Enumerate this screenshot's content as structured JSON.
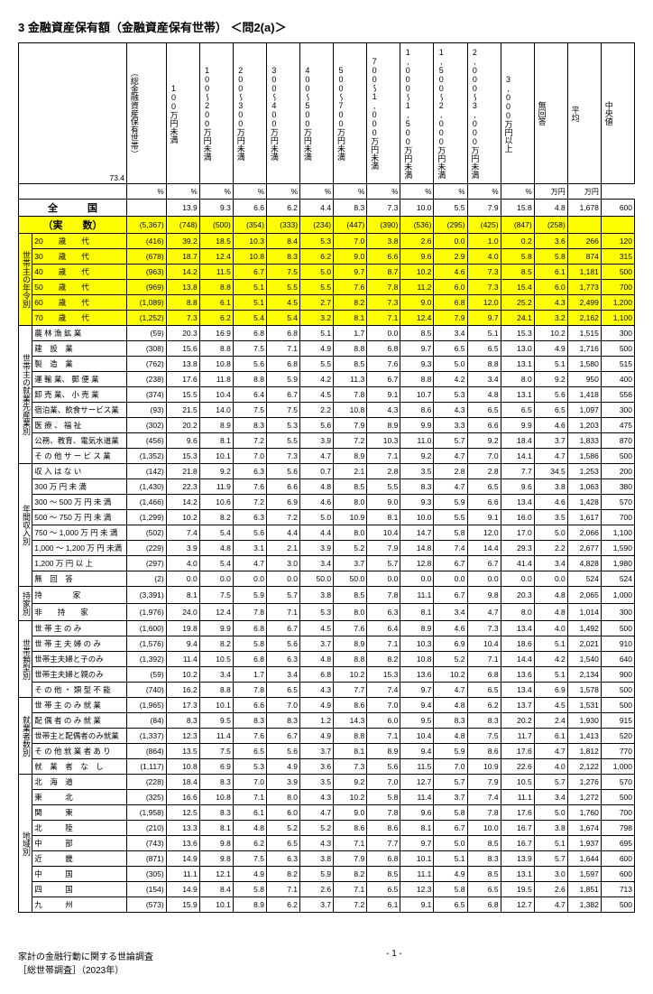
{
  "title": "3 金融資産保有額（金融資産保有世帯） ＜問2(a)＞",
  "corner_value": "73.4",
  "col_headers": {
    "n": "（総金融資産保有世帯）",
    "cols": [
      "100万円未満",
      "100～200万円未満",
      "200～300万円未満",
      "300～400万円未満",
      "400～500万円未満",
      "500～700万円未満",
      "700～1,000万円未満",
      "1,000～1,500万円未満",
      "1,500～2,000万円未満",
      "2,000～3,000万円未満",
      "3,000万円以上",
      "無回答",
      "平均",
      "中央値"
    ]
  },
  "unit_row": [
    "",
    "",
    "%",
    "%",
    "%",
    "%",
    "%",
    "%",
    "%",
    "%",
    "%",
    "%",
    "%",
    "%",
    "万円",
    "万円"
  ],
  "zenkoku": {
    "label": "全　　　国",
    "n": "",
    "vals": [
      "13.9",
      "9.3",
      "6.6",
      "6.2",
      "4.4",
      "8.3",
      "7.3",
      "10.0",
      "5.5",
      "7.9",
      "15.8",
      "4.8",
      "1,678",
      "600"
    ]
  },
  "jissu": {
    "label": "（実　　数）",
    "n": "(5,367)",
    "vals": [
      "(748)",
      "(500)",
      "(354)",
      "(333)",
      "(234)",
      "(447)",
      "(390)",
      "(536)",
      "(295)",
      "(425)",
      "(847)",
      "(258)",
      "",
      ""
    ]
  },
  "sections": [
    {
      "cat": "世帯主の年令別",
      "highlight": true,
      "rows": [
        {
          "label": "20　　歳　　代",
          "n": "(416)",
          "vals": [
            "39.2",
            "18.5",
            "10.3",
            "8.4",
            "5.3",
            "7.0",
            "3.8",
            "2.6",
            "0.0",
            "1.0",
            "0.2",
            "3.6",
            "266",
            "120"
          ]
        },
        {
          "label": "30　　歳　　代",
          "n": "(678)",
          "vals": [
            "18.7",
            "12.4",
            "10.8",
            "8.3",
            "6.2",
            "9.0",
            "6.6",
            "9.6",
            "2.9",
            "4.0",
            "5.8",
            "5.8",
            "874",
            "315"
          ]
        },
        {
          "label": "40　　歳　　代",
          "n": "(963)",
          "vals": [
            "14.2",
            "11.5",
            "6.7",
            "7.5",
            "5.0",
            "9.7",
            "8.7",
            "10.2",
            "4.6",
            "7.3",
            "8.5",
            "6.1",
            "1,181",
            "500"
          ]
        },
        {
          "label": "50　　歳　　代",
          "n": "(969)",
          "vals": [
            "13.8",
            "8.8",
            "5.1",
            "5.5",
            "5.5",
            "7.6",
            "7.8",
            "11.2",
            "6.0",
            "7.3",
            "15.4",
            "6.0",
            "1,773",
            "700"
          ]
        },
        {
          "label": "60　　歳　　代",
          "n": "(1,089)",
          "vals": [
            "8.8",
            "6.1",
            "5.1",
            "4.5",
            "2.7",
            "8.2",
            "7.3",
            "9.0",
            "6.8",
            "12.0",
            "25.2",
            "4.3",
            "2,499",
            "1,200"
          ]
        },
        {
          "label": "70　　歳　　代",
          "n": "(1,252)",
          "vals": [
            "7.3",
            "6.2",
            "5.4",
            "5.4",
            "3.2",
            "8.1",
            "7.1",
            "12.4",
            "7.9",
            "9.7",
            "24.1",
            "3.2",
            "2,162",
            "1,100"
          ]
        }
      ]
    },
    {
      "cat": "世帯主の就業先産業別",
      "rows": [
        {
          "label": "農 林 漁 鉱 業",
          "n": "(59)",
          "vals": [
            "20.3",
            "16.9",
            "6.8",
            "6.8",
            "5.1",
            "1.7",
            "0.0",
            "8.5",
            "3.4",
            "5.1",
            "15.3",
            "10.2",
            "1,515",
            "300"
          ]
        },
        {
          "label": "建　設　業",
          "n": "(308)",
          "vals": [
            "15.6",
            "8.8",
            "7.5",
            "7.1",
            "4.9",
            "8.8",
            "6.8",
            "9.7",
            "6.5",
            "6.5",
            "13.0",
            "4.9",
            "1,716",
            "500"
          ]
        },
        {
          "label": "製　造　業",
          "n": "(762)",
          "vals": [
            "13.8",
            "10.8",
            "5.6",
            "6.8",
            "5.5",
            "8.5",
            "7.6",
            "9.3",
            "5.0",
            "8.8",
            "13.1",
            "5.1",
            "1,580",
            "515"
          ]
        },
        {
          "label": "運 輸 業、 郵 便 業",
          "n": "(238)",
          "vals": [
            "17.6",
            "11.8",
            "8.8",
            "5.9",
            "4.2",
            "11.3",
            "6.7",
            "8.8",
            "4.2",
            "3.4",
            "8.0",
            "9.2",
            "950",
            "400"
          ]
        },
        {
          "label": "卸 売 業、 小 売 業",
          "n": "(374)",
          "vals": [
            "15.5",
            "10.4",
            "6.4",
            "6.7",
            "4.5",
            "7.8",
            "9.1",
            "10.7",
            "5.3",
            "4.8",
            "13.1",
            "5.6",
            "1,418",
            "556"
          ]
        },
        {
          "label": "宿泊業、飲食サービス業",
          "n": "(93)",
          "vals": [
            "21.5",
            "14.0",
            "7.5",
            "7.5",
            "2.2",
            "10.8",
            "4.3",
            "8.6",
            "4.3",
            "6.5",
            "6.5",
            "6.5",
            "1,097",
            "300"
          ]
        },
        {
          "label": "医 療 、 福 祉",
          "n": "(302)",
          "vals": [
            "20.2",
            "8.9",
            "8.3",
            "5.3",
            "5.6",
            "7.9",
            "8.9",
            "9.9",
            "3.3",
            "6.6",
            "9.9",
            "4.6",
            "1,203",
            "475"
          ]
        },
        {
          "label": "公務、教育、電気水道業",
          "n": "(456)",
          "vals": [
            "9.6",
            "8.1",
            "7.2",
            "5.5",
            "3.9",
            "7.2",
            "10.3",
            "11.0",
            "5.7",
            "9.2",
            "18.4",
            "3.7",
            "1,833",
            "870"
          ]
        },
        {
          "label": "そ の 他 サ ー ビ ス 業",
          "n": "(1,352)",
          "vals": [
            "15.3",
            "10.1",
            "7.0",
            "7.3",
            "4.7",
            "8.9",
            "7.1",
            "9.2",
            "4.7",
            "7.0",
            "14.1",
            "4.7",
            "1,586",
            "500"
          ]
        }
      ]
    },
    {
      "cat": "年間収入別",
      "rows": [
        {
          "label": "収 入 は な い",
          "n": "(142)",
          "vals": [
            "21.8",
            "9.2",
            "6.3",
            "5.6",
            "0.7",
            "2.1",
            "2.8",
            "3.5",
            "2.8",
            "2.8",
            "7.7",
            "34.5",
            "1,253",
            "200"
          ]
        },
        {
          "label": "300 万 円 未 満",
          "n": "(1,430)",
          "vals": [
            "22.3",
            "11.9",
            "7.6",
            "6.6",
            "4.8",
            "8.5",
            "5.5",
            "8.3",
            "4.7",
            "6.5",
            "9.6",
            "3.8",
            "1,063",
            "380"
          ]
        },
        {
          "label": "300 ～ 500 万 円 未 満",
          "n": "(1,466)",
          "vals": [
            "14.2",
            "10.6",
            "7.2",
            "6.9",
            "4.6",
            "8.0",
            "9.0",
            "9.3",
            "5.9",
            "6.6",
            "13.4",
            "4.6",
            "1,428",
            "570"
          ]
        },
        {
          "label": "500 ～ 750 万 円 未 満",
          "n": "(1,299)",
          "vals": [
            "10.2",
            "8.2",
            "6.3",
            "7.2",
            "5.0",
            "10.9",
            "8.1",
            "10.0",
            "5.5",
            "9.1",
            "16.0",
            "3.5",
            "1,617",
            "700"
          ]
        },
        {
          "label": "750 ～ 1,000 万 円 未 満",
          "n": "(502)",
          "vals": [
            "7.4",
            "5.4",
            "5.6",
            "4.4",
            "4.4",
            "8.0",
            "10.4",
            "14.7",
            "5.8",
            "12.0",
            "17.0",
            "5.0",
            "2,066",
            "1,100"
          ]
        },
        {
          "label": "1,000 ～ 1,200 万 円 未満",
          "n": "(229)",
          "vals": [
            "3.9",
            "4.8",
            "3.1",
            "2.1",
            "3.9",
            "5.2",
            "7.9",
            "14.8",
            "7.4",
            "14.4",
            "29.3",
            "2.2",
            "2,677",
            "1,590"
          ]
        },
        {
          "label": "1,200 万 円 以 上",
          "n": "(297)",
          "vals": [
            "4.0",
            "5.4",
            "4.7",
            "3.0",
            "3.4",
            "3.7",
            "5.7",
            "12.8",
            "6.7",
            "6.7",
            "41.4",
            "3.4",
            "4,828",
            "1,980"
          ]
        },
        {
          "label": "無　回　答",
          "n": "(2)",
          "vals": [
            "0.0",
            "0.0",
            "0.0",
            "0.0",
            "50.0",
            "50.0",
            "0.0",
            "0.0",
            "0.0",
            "0.0",
            "0.0",
            "0.0",
            "524",
            "524"
          ]
        }
      ]
    },
    {
      "cat": "持家別",
      "rows": [
        {
          "label": "持　　　　家",
          "n": "(3,391)",
          "vals": [
            "8.1",
            "7.5",
            "5.9",
            "5.7",
            "3.8",
            "8.5",
            "7.8",
            "11.1",
            "6.7",
            "9.8",
            "20.3",
            "4.8",
            "2,065",
            "1,000"
          ]
        },
        {
          "label": "非　　持　　家",
          "n": "(1,976)",
          "vals": [
            "24.0",
            "12.4",
            "7.8",
            "7.1",
            "5.3",
            "8.0",
            "6.3",
            "8.1",
            "3.4",
            "4.7",
            "8.0",
            "4.8",
            "1,014",
            "300"
          ]
        }
      ]
    },
    {
      "cat": "世帯類型別",
      "rows": [
        {
          "label": "世 帯 主 の み",
          "n": "(1,600)",
          "vals": [
            "19.8",
            "9.9",
            "6.8",
            "6.7",
            "4.5",
            "7.6",
            "6.4",
            "8.9",
            "4.6",
            "7.3",
            "13.4",
            "4.0",
            "1,492",
            "500"
          ]
        },
        {
          "label": "世 帯 主 夫 婦 の み",
          "n": "(1,576)",
          "vals": [
            "9.4",
            "8.2",
            "5.8",
            "5.6",
            "3.7",
            "8.9",
            "7.1",
            "10.3",
            "6.9",
            "10.4",
            "18.6",
            "5.1",
            "2,021",
            "910"
          ]
        },
        {
          "label": "世帯主夫婦と子のみ",
          "n": "(1,392)",
          "vals": [
            "11.4",
            "10.5",
            "6.8",
            "6.3",
            "4.8",
            "8.8",
            "8.2",
            "10.8",
            "5.2",
            "7.1",
            "14.4",
            "4.2",
            "1,540",
            "640"
          ]
        },
        {
          "label": "世帯主夫婦と親のみ",
          "n": "(59)",
          "vals": [
            "10.2",
            "3.4",
            "1.7",
            "3.4",
            "6.8",
            "10.2",
            "15.3",
            "13.6",
            "10.2",
            "6.8",
            "13.6",
            "5.1",
            "2,134",
            "900"
          ]
        },
        {
          "label": "そ の 他 ・ 類 型 不 能",
          "n": "(740)",
          "vals": [
            "16.2",
            "8.8",
            "7.8",
            "6.5",
            "4.3",
            "7.7",
            "7.4",
            "9.7",
            "4.7",
            "6.5",
            "13.4",
            "6.9",
            "1,578",
            "500"
          ]
        }
      ]
    },
    {
      "cat": "就業者数別",
      "rows": [
        {
          "label": "世 帯 主 の み 就 業",
          "n": "(1,965)",
          "vals": [
            "17.3",
            "10.1",
            "6.6",
            "7.0",
            "4.9",
            "8.6",
            "7.0",
            "9.4",
            "4.8",
            "6.2",
            "13.7",
            "4.5",
            "1,531",
            "500"
          ]
        },
        {
          "label": "配 偶 者 の み 就 業",
          "n": "(84)",
          "vals": [
            "8.3",
            "9.5",
            "8.3",
            "8.3",
            "1.2",
            "14.3",
            "6.0",
            "9.5",
            "8.3",
            "8.3",
            "20.2",
            "2.4",
            "1,930",
            "915"
          ]
        },
        {
          "label": "世帯主と配偶者のみ就業",
          "n": "(1,337)",
          "vals": [
            "12.3",
            "11.4",
            "7.6",
            "6.7",
            "4.9",
            "8.8",
            "7.1",
            "10.4",
            "4.8",
            "7.5",
            "11.7",
            "6.1",
            "1,413",
            "520"
          ]
        },
        {
          "label": "そ の 他 就 業 者 あ り",
          "n": "(864)",
          "vals": [
            "13.5",
            "7.5",
            "6.5",
            "5.6",
            "3.7",
            "8.1",
            "8.9",
            "9.4",
            "5.9",
            "8.6",
            "17.6",
            "4.7",
            "1,812",
            "770"
          ]
        },
        {
          "label": "就　業　者　な　し",
          "n": "(1,117)",
          "vals": [
            "10.8",
            "6.9",
            "5.3",
            "4.9",
            "3.6",
            "7.3",
            "5.6",
            "11.5",
            "7.0",
            "10.9",
            "22.6",
            "4.0",
            "2,122",
            "1,000"
          ]
        }
      ]
    },
    {
      "cat": "地域別",
      "rows": [
        {
          "label": "北　海　道",
          "n": "(228)",
          "vals": [
            "18.4",
            "8.3",
            "7.0",
            "3.9",
            "3.5",
            "9.2",
            "7.0",
            "12.7",
            "5.7",
            "7.9",
            "10.5",
            "5.7",
            "1,276",
            "570"
          ]
        },
        {
          "label": "東　　　北",
          "n": "(325)",
          "vals": [
            "16.6",
            "10.8",
            "7.1",
            "8.0",
            "4.3",
            "10.2",
            "5.8",
            "11.4",
            "3.7",
            "7.4",
            "11.1",
            "3.4",
            "1,272",
            "500"
          ]
        },
        {
          "label": "関　　　東",
          "n": "(1,958)",
          "vals": [
            "12.5",
            "8.3",
            "6.1",
            "6.0",
            "4.7",
            "9.0",
            "7.8",
            "9.6",
            "5.8",
            "7.8",
            "17.6",
            "5.0",
            "1,760",
            "700"
          ]
        },
        {
          "label": "北　　　陸",
          "n": "(210)",
          "vals": [
            "13.3",
            "8.1",
            "4.8",
            "5.2",
            "5.2",
            "8.6",
            "8.6",
            "8.1",
            "6.7",
            "10.0",
            "16.7",
            "3.8",
            "1,674",
            "798"
          ]
        },
        {
          "label": "中　　　部",
          "n": "(743)",
          "vals": [
            "13.6",
            "9.8",
            "6.2",
            "6.5",
            "4.3",
            "7.1",
            "7.7",
            "9.7",
            "5.0",
            "8.5",
            "16.7",
            "5.1",
            "1,937",
            "695"
          ]
        },
        {
          "label": "近　　　畿",
          "n": "(871)",
          "vals": [
            "14.9",
            "9.8",
            "7.5",
            "6.3",
            "3.8",
            "7.9",
            "6.8",
            "10.1",
            "5.1",
            "8.3",
            "13.9",
            "5.7",
            "1,644",
            "600"
          ]
        },
        {
          "label": "中　　　国",
          "n": "(305)",
          "vals": [
            "11.1",
            "12.1",
            "4.9",
            "8.2",
            "5.9",
            "8.2",
            "8.5",
            "11.1",
            "4.9",
            "8.5",
            "13.1",
            "3.0",
            "1,597",
            "600"
          ]
        },
        {
          "label": "四　　　国",
          "n": "(154)",
          "vals": [
            "14.9",
            "8.4",
            "5.8",
            "7.1",
            "2.6",
            "7.1",
            "6.5",
            "12.3",
            "5.8",
            "6.5",
            "19.5",
            "2.6",
            "1,851",
            "713"
          ]
        },
        {
          "label": "九　　　州",
          "n": "(573)",
          "vals": [
            "15.9",
            "10.1",
            "8.9",
            "6.2",
            "3.7",
            "7.2",
            "6.1",
            "9.1",
            "6.5",
            "6.8",
            "12.7",
            "4.7",
            "1,382",
            "500"
          ]
        }
      ]
    }
  ],
  "footer": {
    "left1": "家計の金融行動に関する世論調査",
    "left2": "［総世帯調査］（2023年）",
    "page": "- 1 -"
  }
}
